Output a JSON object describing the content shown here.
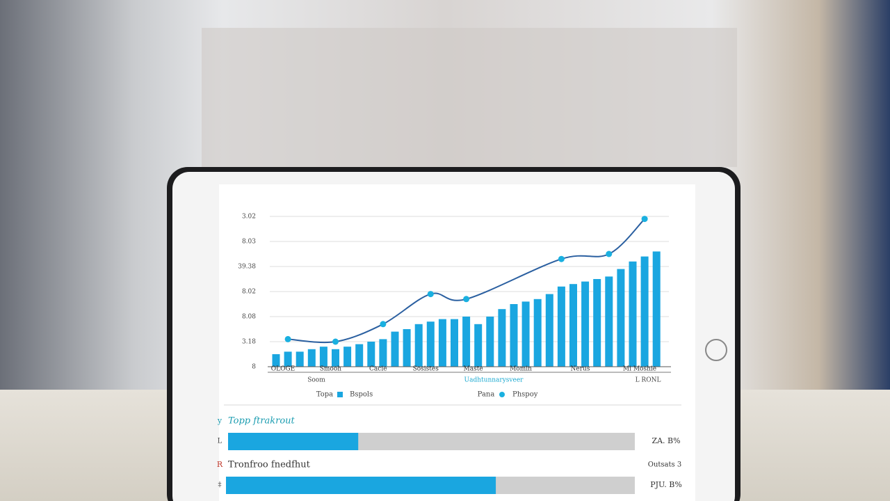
{
  "chart_data": {
    "type": "bar",
    "categories": [
      "OLOGE",
      null,
      null,
      null,
      "Smooh",
      null,
      null,
      null,
      "Cacie",
      null,
      null,
      null,
      "Sosistes",
      null,
      null,
      null,
      "Maste",
      null,
      null,
      null,
      "Momin",
      null,
      null,
      null,
      null,
      "Nerus",
      null,
      null,
      null,
      null,
      "Mi Moshie",
      null,
      null
    ],
    "series": [
      {
        "name": "Bspols",
        "color": "#1aa6e0",
        "values": [
          0.5,
          0.6,
          0.6,
          0.7,
          0.8,
          0.7,
          0.8,
          0.9,
          1.0,
          1.1,
          1.4,
          1.5,
          1.7,
          1.8,
          1.9,
          1.9,
          2.0,
          1.7,
          2.0,
          2.3,
          2.5,
          2.6,
          2.7,
          2.9,
          3.2,
          3.3,
          3.4,
          3.5,
          3.6,
          3.9,
          4.2,
          4.4,
          4.6
        ]
      },
      {
        "name": "Phspoy",
        "type": "line",
        "color": "#2a5fa0",
        "marker_color": "#1ab0e0",
        "x": [
          1,
          5,
          9,
          13,
          16,
          24,
          28,
          31
        ],
        "values": [
          1.1,
          1.0,
          1.7,
          2.9,
          2.7,
          4.3,
          4.5,
          5.9
        ]
      }
    ],
    "ylim": [
      0,
      6
    ],
    "yticks": [
      {
        "value": 0,
        "label": "8"
      },
      {
        "value": 1,
        "label": "3.18"
      },
      {
        "value": 2,
        "label": "8.08"
      },
      {
        "value": 3,
        "label": "8.02"
      },
      {
        "value": 4,
        "label": "39.38"
      },
      {
        "value": 5,
        "label": "8.03"
      },
      {
        "value": 6,
        "label": "3.02"
      }
    ],
    "grid": true,
    "legend_prefixes": [
      "Topa",
      "Pana"
    ],
    "annotations": [
      "Soom",
      "Uadhtunnarysveer",
      "L RONL"
    ]
  },
  "progress": [
    {
      "marker": "y",
      "title": "Topp ftrakrout",
      "side": "L",
      "value": 32,
      "label": "ZA. B%"
    },
    {
      "marker": "R",
      "title": "Tronfroo fnedfhut",
      "side": "‡",
      "value": 66,
      "label": "PJU. B%",
      "note": "Outsats 3"
    }
  ]
}
